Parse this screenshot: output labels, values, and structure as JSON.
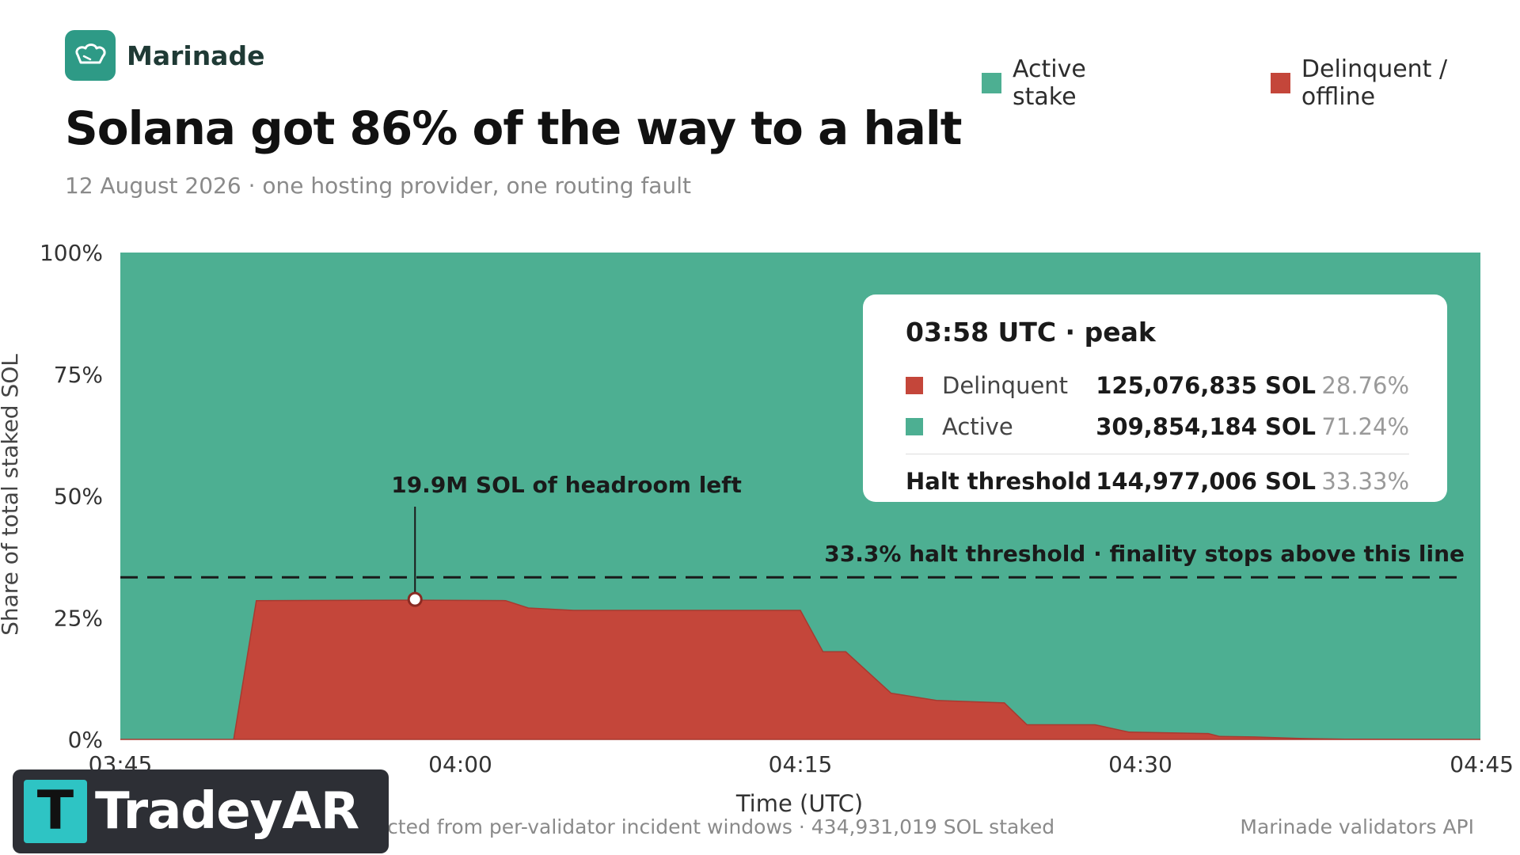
{
  "brand": {
    "name": "Marinade",
    "icon": "chef-hat-logo-icon"
  },
  "title": "Solana got 86% of the way to a halt",
  "subtitle": "12 August 2026 · one hosting provider, one routing fault",
  "colors": {
    "active": "#4daf92",
    "delinquent": "#c4463a",
    "brand": "#2e9a86",
    "threshold": "#1a1a1a"
  },
  "legend": [
    {
      "label": "Active stake",
      "color": "#4daf92"
    },
    {
      "label": "Delinquent / offline",
      "color": "#c4463a"
    }
  ],
  "tooltip": {
    "header": "03:58 UTC · peak",
    "rows": [
      {
        "label": "Delinquent",
        "value": "125,076,835 SOL",
        "pct": "28.76%",
        "color": "#c4463a"
      },
      {
        "label": "Active",
        "value": "309,854,184 SOL",
        "pct": "71.24%",
        "color": "#4daf92"
      }
    ],
    "total": {
      "label": "Halt threshold",
      "value": "144,977,006 SOL",
      "pct": "33.33%"
    }
  },
  "footer": {
    "note": "Delinquent stake reconstructed from per-validator incident windows · 434,931,019 SOL staked",
    "source": "Marinade validators API"
  },
  "watermark": {
    "text": "TradeyAR",
    "letter": "T"
  },
  "chart_data": {
    "type": "area",
    "xlabel": "Time (UTC)",
    "ylabel": "Share of total staked SOL",
    "xlim": [
      0,
      60
    ],
    "ylim": [
      0,
      100
    ],
    "x_ticks": [
      {
        "x": 0,
        "label": "03:45"
      },
      {
        "x": 15,
        "label": "04:00"
      },
      {
        "x": 30,
        "label": "04:15"
      },
      {
        "x": 45,
        "label": "04:30"
      },
      {
        "x": 60,
        "label": "04:45"
      }
    ],
    "y_ticks": [
      {
        "y": 0,
        "label": "0%"
      },
      {
        "y": 25,
        "label": "25%"
      },
      {
        "y": 50,
        "label": "50%"
      },
      {
        "y": 75,
        "label": "75%"
      },
      {
        "y": 100,
        "label": "100%"
      }
    ],
    "series": [
      {
        "name": "Delinquent / offline",
        "color": "#c4463a",
        "x": [
          0,
          5,
          6,
          13,
          17,
          18,
          20,
          30,
          31,
          32,
          34,
          36,
          39,
          40,
          43,
          44.5,
          48,
          48.5,
          50,
          52,
          54,
          60
        ],
        "y": [
          0,
          0,
          28.5,
          28.6,
          28.5,
          27,
          26.5,
          26.5,
          18,
          18,
          9.5,
          8,
          7.5,
          3,
          3,
          1.5,
          1.2,
          0.6,
          0.5,
          0.2,
          0.05,
          0
        ]
      },
      {
        "name": "Active stake",
        "color": "#4daf92",
        "fill": "remainder to 100%"
      }
    ],
    "threshold": {
      "y": 33.3,
      "label": "33.3% halt threshold · finality stops above this line"
    },
    "annotation": {
      "x": 13,
      "y": 28.76,
      "label": "19.9M SOL of headroom left"
    }
  }
}
